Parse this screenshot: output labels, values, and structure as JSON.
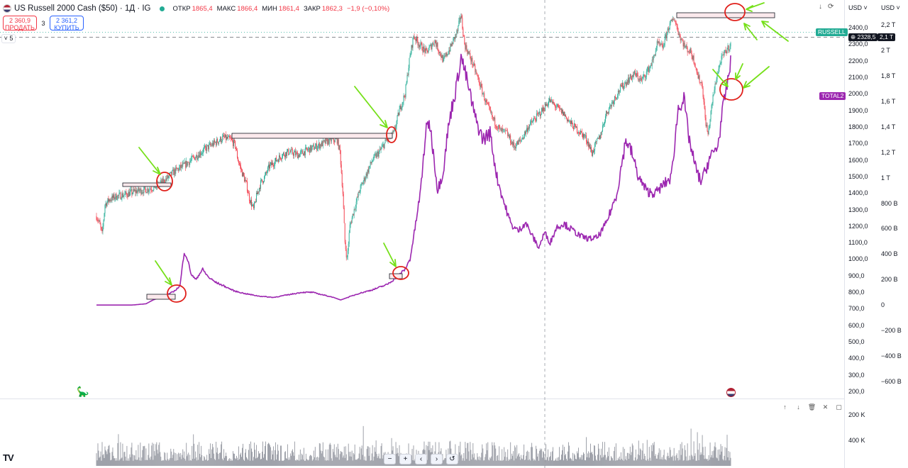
{
  "header": {
    "symbol": "US Russell 2000 Cash ($50) · 1Д · IG",
    "open_label": "ОТКР",
    "open": "1865,4",
    "high_label": "МАКС",
    "high": "1866,4",
    "low_label": "МИН",
    "low": "1861,4",
    "close_label": "ЗАКР",
    "close": "1862,3",
    "change": "−1,9 (−0,10%)",
    "colors": {
      "down": "#f23645",
      "up": "#22ab94",
      "live_dot": "#22ab94"
    }
  },
  "trade": {
    "sell_price": "2 360,9",
    "sell_label": "ПРОДАТЬ",
    "spread": "3",
    "buy_price": "2 361,2",
    "buy_label": "КУПИТЬ"
  },
  "indicator_toggle": "5",
  "toolbar": {
    "down_icon": "arrow-down-icon",
    "reload_icon": "reset-icon"
  },
  "currency_left": "USD",
  "currency_right": "USD",
  "price_axis": [
    "2400,0",
    "2300,0",
    "2200,0",
    "2100,0",
    "2000,0",
    "1900,0",
    "1800,0",
    "1700,0",
    "1600,0",
    "1500,0",
    "1400,0",
    "1300,0",
    "1200,0",
    "1100,0",
    "1000,0",
    "900,0",
    "800,0",
    "700,0",
    "600,0",
    "500,0",
    "400,0",
    "300,0",
    "200,0"
  ],
  "total_axis": [
    "2,2 T",
    "2,1 T",
    "2 T",
    "1,8 T",
    "1,6 T",
    "1,4 T",
    "1,2 T",
    "1 T",
    "800 B",
    "600 B",
    "400 B",
    "200 B",
    "0",
    "−200 B",
    "−400 B",
    "−600 B"
  ],
  "tags": {
    "russell_name": "RUSSELL",
    "russell_price": "2328,5",
    "total_name": "TOTAL2",
    "total_value": "2,1 T"
  },
  "volume_axis": [
    "400 K",
    "200 K"
  ],
  "colors": {
    "total2": "#9c27b0",
    "russell_tag": "#22ab94",
    "annotation_arrow": "#76e01a",
    "annotation_circle": "#e0201b",
    "zone_fill": "#fbe9ec",
    "volume": "#9598a1",
    "crosshair": "#9598a1"
  },
  "chart_data": [
    {
      "type": "candlestick",
      "name": "US Russell 2000 Cash ($50)",
      "ylim": [
        150,
        2500
      ],
      "points": [
        [
          0,
          1260
        ],
        [
          4,
          1220
        ],
        [
          8,
          1150
        ],
        [
          12,
          1330
        ],
        [
          18,
          1360
        ],
        [
          28,
          1380
        ],
        [
          40,
          1390
        ],
        [
          55,
          1410
        ],
        [
          70,
          1420
        ],
        [
          85,
          1440
        ],
        [
          95,
          1470
        ],
        [
          110,
          1530
        ],
        [
          125,
          1570
        ],
        [
          140,
          1620
        ],
        [
          155,
          1670
        ],
        [
          170,
          1710
        ],
        [
          180,
          1735
        ],
        [
          190,
          1720
        ],
        [
          196,
          1690
        ],
        [
          200,
          1600
        ],
        [
          206,
          1520
        ],
        [
          212,
          1450
        ],
        [
          216,
          1370
        ],
        [
          222,
          1300
        ],
        [
          226,
          1380
        ],
        [
          232,
          1460
        ],
        [
          238,
          1500
        ],
        [
          244,
          1560
        ],
        [
          252,
          1590
        ],
        [
          262,
          1630
        ],
        [
          272,
          1650
        ],
        [
          285,
          1630
        ],
        [
          298,
          1660
        ],
        [
          310,
          1680
        ],
        [
          320,
          1700
        ],
        [
          330,
          1720
        ],
        [
          340,
          1720
        ],
        [
          344,
          1650
        ],
        [
          348,
          1400
        ],
        [
          351,
          1100
        ],
        [
          354,
          1000
        ],
        [
          358,
          1200
        ],
        [
          364,
          1300
        ],
        [
          372,
          1420
        ],
        [
          380,
          1500
        ],
        [
          390,
          1600
        ],
        [
          400,
          1650
        ],
        [
          410,
          1720
        ],
        [
          420,
          1760
        ],
        [
          428,
          1900
        ],
        [
          436,
          2000
        ],
        [
          442,
          2200
        ],
        [
          448,
          2350
        ],
        [
          456,
          2300
        ],
        [
          466,
          2250
        ],
        [
          478,
          2320
        ],
        [
          490,
          2200
        ],
        [
          500,
          2280
        ],
        [
          510,
          2380
        ],
        [
          515,
          2480
        ],
        [
          520,
          2300
        ],
        [
          530,
          2200
        ],
        [
          540,
          2080
        ],
        [
          550,
          1950
        ],
        [
          560,
          1850
        ],
        [
          570,
          1780
        ],
        [
          580,
          1760
        ],
        [
          590,
          1680
        ],
        [
          600,
          1720
        ],
        [
          610,
          1800
        ],
        [
          620,
          1850
        ],
        [
          630,
          1900
        ],
        [
          640,
          1960
        ],
        [
          650,
          1920
        ],
        [
          660,
          1880
        ],
        [
          670,
          1820
        ],
        [
          680,
          1780
        ],
        [
          690,
          1740
        ],
        [
          695,
          1700
        ],
        [
          700,
          1640
        ],
        [
          706,
          1700
        ],
        [
          712,
          1750
        ],
        [
          720,
          1880
        ],
        [
          730,
          1960
        ],
        [
          740,
          2030
        ],
        [
          750,
          2080
        ],
        [
          760,
          2120
        ],
        [
          770,
          2080
        ],
        [
          780,
          2150
        ],
        [
          786,
          2200
        ],
        [
          792,
          2300
        ],
        [
          800,
          2280
        ],
        [
          808,
          2400
        ],
        [
          816,
          2460
        ],
        [
          824,
          2350
        ],
        [
          832,
          2280
        ],
        [
          840,
          2250
        ],
        [
          846,
          2180
        ],
        [
          850,
          2100
        ],
        [
          856,
          2050
        ],
        [
          860,
          1850
        ],
        [
          864,
          1750
        ],
        [
          870,
          1950
        ],
        [
          876,
          2100
        ],
        [
          882,
          2200
        ],
        [
          888,
          2250
        ],
        [
          896,
          2300
        ]
      ]
    },
    {
      "type": "line",
      "name": "TOTAL2",
      "ylim": [
        -700,
        2300
      ],
      "points": [
        [
          0,
          0
        ],
        [
          50,
          0
        ],
        [
          70,
          10
        ],
        [
          80,
          40
        ],
        [
          90,
          60
        ],
        [
          100,
          80
        ],
        [
          110,
          110
        ],
        [
          118,
          150
        ],
        [
          124,
          420
        ],
        [
          128,
          370
        ],
        [
          134,
          240
        ],
        [
          140,
          200
        ],
        [
          150,
          280
        ],
        [
          158,
          220
        ],
        [
          168,
          180
        ],
        [
          180,
          150
        ],
        [
          195,
          110
        ],
        [
          210,
          90
        ],
        [
          230,
          70
        ],
        [
          250,
          60
        ],
        [
          270,
          80
        ],
        [
          290,
          100
        ],
        [
          305,
          100
        ],
        [
          320,
          80
        ],
        [
          335,
          60
        ],
        [
          345,
          40
        ],
        [
          355,
          60
        ],
        [
          370,
          90
        ],
        [
          390,
          120
        ],
        [
          410,
          160
        ],
        [
          420,
          200
        ],
        [
          428,
          240
        ],
        [
          436,
          280
        ],
        [
          443,
          360
        ],
        [
          450,
          600
        ],
        [
          458,
          900
        ],
        [
          465,
          1350
        ],
        [
          470,
          1450
        ],
        [
          476,
          1200
        ],
        [
          482,
          900
        ],
        [
          490,
          1050
        ],
        [
          496,
          1350
        ],
        [
          502,
          1550
        ],
        [
          508,
          1700
        ],
        [
          515,
          1950
        ],
        [
          520,
          1850
        ],
        [
          528,
          1650
        ],
        [
          536,
          1450
        ],
        [
          546,
          1300
        ],
        [
          556,
          1350
        ],
        [
          566,
          1000
        ],
        [
          576,
          800
        ],
        [
          586,
          630
        ],
        [
          596,
          580
        ],
        [
          606,
          650
        ],
        [
          616,
          540
        ],
        [
          625,
          450
        ],
        [
          633,
          570
        ],
        [
          641,
          490
        ],
        [
          650,
          610
        ],
        [
          660,
          640
        ],
        [
          672,
          590
        ],
        [
          684,
          540
        ],
        [
          696,
          520
        ],
        [
          708,
          530
        ],
        [
          720,
          640
        ],
        [
          735,
          870
        ],
        [
          748,
          1300
        ],
        [
          756,
          1200
        ],
        [
          766,
          1000
        ],
        [
          778,
          890
        ],
        [
          790,
          880
        ],
        [
          802,
          950
        ],
        [
          812,
          1000
        ],
        [
          822,
          1550
        ],
        [
          830,
          1620
        ],
        [
          836,
          1350
        ],
        [
          842,
          1180
        ],
        [
          848,
          1050
        ],
        [
          854,
          970
        ],
        [
          860,
          1050
        ],
        [
          866,
          1150
        ],
        [
          872,
          1200
        ],
        [
          878,
          1250
        ],
        [
          884,
          1500
        ],
        [
          890,
          1700
        ],
        [
          896,
          1900
        ]
      ]
    },
    {
      "type": "bar",
      "name": "Volume",
      "ylim": [
        0,
        480000
      ],
      "ticks": [
        200000,
        400000
      ]
    }
  ]
}
